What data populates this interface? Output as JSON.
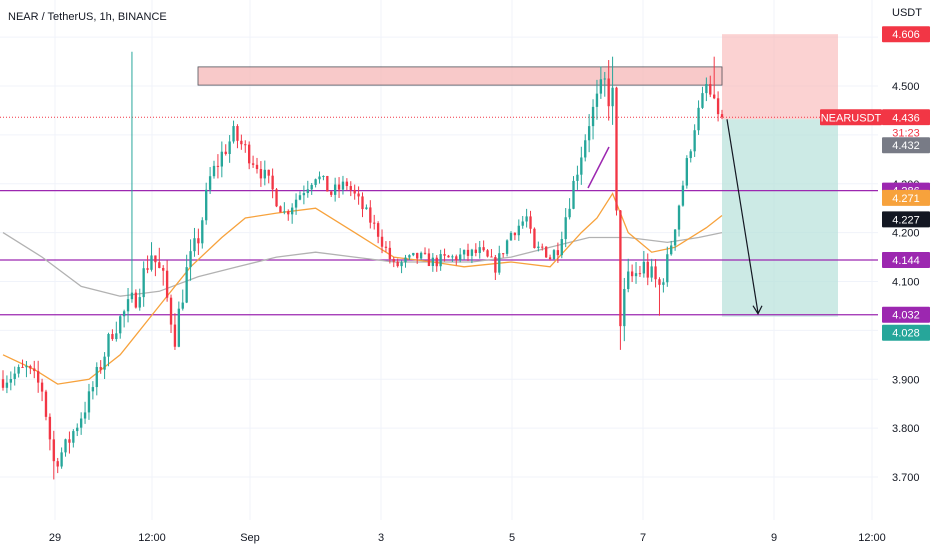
{
  "header": {
    "title": "NEAR / TetherUS, 1h, BINANCE"
  },
  "colors": {
    "up": "#26a69a",
    "down": "#f23645",
    "ma_fast": "#f7a23c",
    "ma_slow": "#b2b2b2",
    "level": "#9c27b0",
    "stop_zone": "#f8b4b4",
    "target_zone": "#b7e1da",
    "resistance": "#f6b8b8"
  },
  "chart_data": {
    "type": "candlestick",
    "symbol": "NEARUSDT",
    "currency_label": "USDT",
    "ylim": [
      3.62,
      4.65
    ],
    "x_ticks": [
      "29",
      "12:00",
      "Sep",
      "3",
      "5",
      "7",
      "9",
      "12:00"
    ],
    "y_ticks": [
      "3.700",
      "3.800",
      "3.900",
      "4.100",
      "4.200",
      "4.300",
      "4.500"
    ],
    "horizontal_levels": [
      4.286,
      4.144,
      4.032
    ],
    "price_tags": [
      {
        "text": "4.606",
        "value": 4.606,
        "kind": "stop"
      },
      {
        "text": "4.436",
        "value": 4.436,
        "kind": "last",
        "symbol_text": "NEARUSDT",
        "countdown": "31:23"
      },
      {
        "text": "4.432",
        "value": 4.432,
        "kind": "gray"
      },
      {
        "text": "4.286",
        "value": 4.286,
        "kind": "level"
      },
      {
        "text": "4.271",
        "value": 4.271,
        "kind": "ma_fast"
      },
      {
        "text": "4.227",
        "value": 4.227,
        "kind": "ma_slow"
      },
      {
        "text": "4.144",
        "value": 4.144,
        "kind": "level"
      },
      {
        "text": "4.032",
        "value": 4.032,
        "kind": "level"
      },
      {
        "text": "4.028",
        "value": 4.028,
        "kind": "target"
      }
    ],
    "resistance_zone": {
      "low": 4.51,
      "high": 4.535,
      "start_index": 24,
      "end_index": 118
    },
    "short_position": {
      "entry": 4.432,
      "stop": 4.606,
      "target": 4.028,
      "start_index": 118
    },
    "projection": {
      "from_value": 4.432,
      "to_value": 4.032
    },
    "ma_fast": [
      [
        0,
        3.95
      ],
      [
        8,
        3.92
      ],
      [
        14,
        3.89
      ],
      [
        22,
        3.9
      ],
      [
        30,
        3.95
      ],
      [
        40,
        4.05
      ],
      [
        48,
        4.13
      ],
      [
        56,
        4.19
      ],
      [
        62,
        4.23
      ],
      [
        70,
        4.24
      ],
      [
        80,
        4.25
      ],
      [
        90,
        4.2
      ],
      [
        100,
        4.15
      ],
      [
        110,
        4.14
      ],
      [
        118,
        4.13
      ],
      [
        130,
        4.14
      ],
      [
        140,
        4.13
      ],
      [
        148,
        4.2
      ],
      [
        152,
        4.23
      ],
      [
        156,
        4.28
      ],
      [
        160,
        4.2
      ],
      [
        166,
        4.16
      ],
      [
        172,
        4.17
      ],
      [
        180,
        4.21
      ],
      [
        184,
        4.235
      ]
    ],
    "ma_slow": [
      [
        0,
        4.2
      ],
      [
        10,
        4.15
      ],
      [
        20,
        4.09
      ],
      [
        30,
        4.07
      ],
      [
        40,
        4.08
      ],
      [
        50,
        4.11
      ],
      [
        60,
        4.13
      ],
      [
        70,
        4.15
      ],
      [
        80,
        4.16
      ],
      [
        90,
        4.15
      ],
      [
        100,
        4.14
      ],
      [
        110,
        4.14
      ],
      [
        120,
        4.14
      ],
      [
        130,
        4.15
      ],
      [
        140,
        4.17
      ],
      [
        150,
        4.19
      ],
      [
        160,
        4.19
      ],
      [
        170,
        4.18
      ],
      [
        178,
        4.19
      ],
      [
        184,
        4.2
      ]
    ],
    "price_path": [
      [
        0,
        3.9
      ],
      [
        6,
        3.92
      ],
      [
        10,
        3.88
      ],
      [
        13,
        3.73
      ],
      [
        16,
        3.76
      ],
      [
        22,
        3.86
      ],
      [
        28,
        4.0
      ],
      [
        34,
        4.07
      ],
      [
        38,
        4.16
      ],
      [
        41,
        4.1
      ],
      [
        44,
        3.99
      ],
      [
        47,
        4.12
      ],
      [
        50,
        4.19
      ],
      [
        53,
        4.31
      ],
      [
        56,
        4.36
      ],
      [
        59,
        4.4
      ],
      [
        62,
        4.37
      ],
      [
        65,
        4.34
      ],
      [
        68,
        4.3
      ],
      [
        72,
        4.24
      ],
      [
        76,
        4.28
      ],
      [
        80,
        4.32
      ],
      [
        84,
        4.28
      ],
      [
        88,
        4.3
      ],
      [
        92,
        4.25
      ],
      [
        96,
        4.2
      ],
      [
        100,
        4.13
      ],
      [
        106,
        4.15
      ],
      [
        110,
        4.14
      ],
      [
        116,
        4.15
      ],
      [
        122,
        4.16
      ],
      [
        126,
        4.13
      ],
      [
        130,
        4.2
      ],
      [
        134,
        4.23
      ],
      [
        136,
        4.16
      ],
      [
        138,
        4.17
      ],
      [
        140,
        4.15
      ],
      [
        142,
        4.17
      ],
      [
        146,
        4.3
      ],
      [
        150,
        4.43
      ],
      [
        154,
        4.5
      ],
      [
        156,
        4.47
      ],
      [
        157,
        4.22
      ],
      [
        158,
        4.03
      ],
      [
        160,
        4.1
      ],
      [
        164,
        4.13
      ],
      [
        168,
        4.09
      ],
      [
        170,
        4.14
      ],
      [
        174,
        4.3
      ],
      [
        177,
        4.42
      ],
      [
        180,
        4.5
      ],
      [
        182,
        4.46
      ],
      [
        184,
        4.436
      ]
    ],
    "volatility": [
      [
        0,
        0.025
      ],
      [
        12,
        0.03
      ],
      [
        30,
        0.03
      ],
      [
        40,
        0.04
      ],
      [
        56,
        0.03
      ],
      [
        70,
        0.025
      ],
      [
        100,
        0.02
      ],
      [
        140,
        0.02
      ],
      [
        150,
        0.035
      ],
      [
        156,
        0.06
      ],
      [
        160,
        0.04
      ],
      [
        170,
        0.03
      ],
      [
        184,
        0.02
      ]
    ],
    "spikes": [
      [
        13,
        3.695,
        "low"
      ],
      [
        33,
        4.57,
        "high"
      ],
      [
        44,
        3.96,
        "low"
      ],
      [
        156,
        4.56,
        "high"
      ],
      [
        158,
        3.96,
        "low"
      ],
      [
        168,
        4.03,
        "low"
      ],
      [
        182,
        4.56,
        "high"
      ]
    ],
    "n_candles": 185
  }
}
